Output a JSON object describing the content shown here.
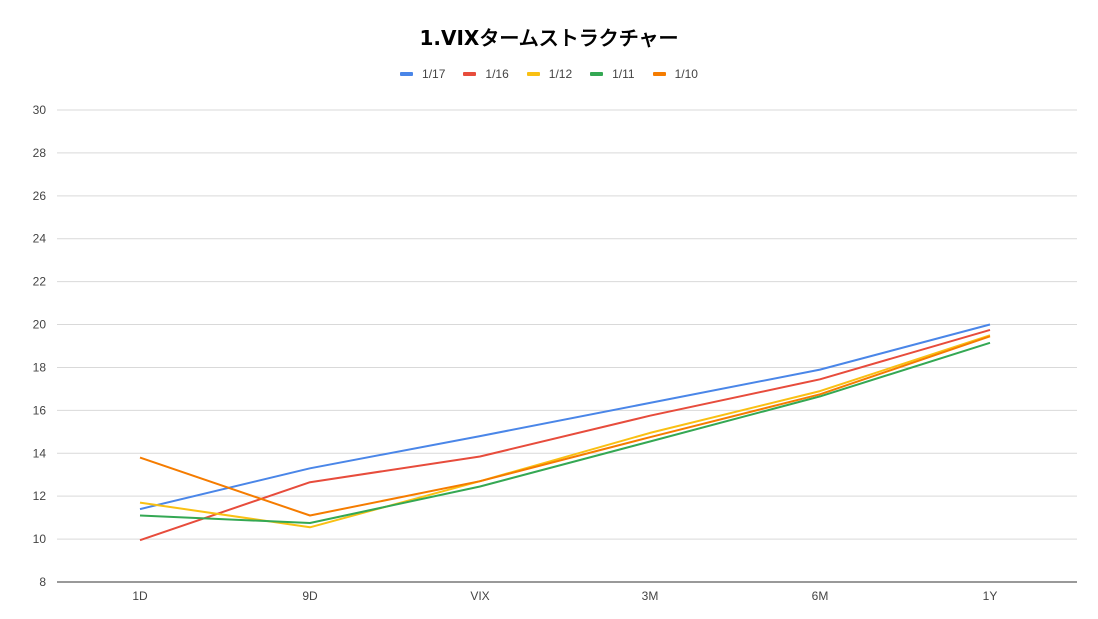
{
  "chart_data": {
    "type": "line",
    "title": "1.VIXタームストラクチャー",
    "xlabel": "",
    "ylabel": "",
    "categories": [
      "1D",
      "9D",
      "VIX",
      "3M",
      "6M",
      "1Y"
    ],
    "ylim": [
      8,
      30
    ],
    "yticks": [
      8,
      10,
      12,
      14,
      16,
      18,
      20,
      22,
      24,
      26,
      28,
      30
    ],
    "grid": true,
    "legend_position": "top",
    "series": [
      {
        "name": "1/17",
        "color": "#4a86e8",
        "values": [
          11.4,
          13.3,
          14.8,
          16.35,
          17.9,
          20.0
        ]
      },
      {
        "name": "1/16",
        "color": "#e74c3c",
        "values": [
          9.95,
          12.65,
          13.85,
          15.75,
          17.45,
          19.75
        ]
      },
      {
        "name": "1/12",
        "color": "#f9c013",
        "values": [
          11.7,
          10.55,
          12.7,
          14.95,
          16.9,
          19.5
        ]
      },
      {
        "name": "1/11",
        "color": "#34a853",
        "values": [
          11.1,
          10.75,
          12.45,
          14.55,
          16.65,
          19.15
        ]
      },
      {
        "name": "1/10",
        "color": "#f57c00",
        "values": [
          13.8,
          11.1,
          12.7,
          14.75,
          16.75,
          19.45
        ]
      }
    ]
  }
}
